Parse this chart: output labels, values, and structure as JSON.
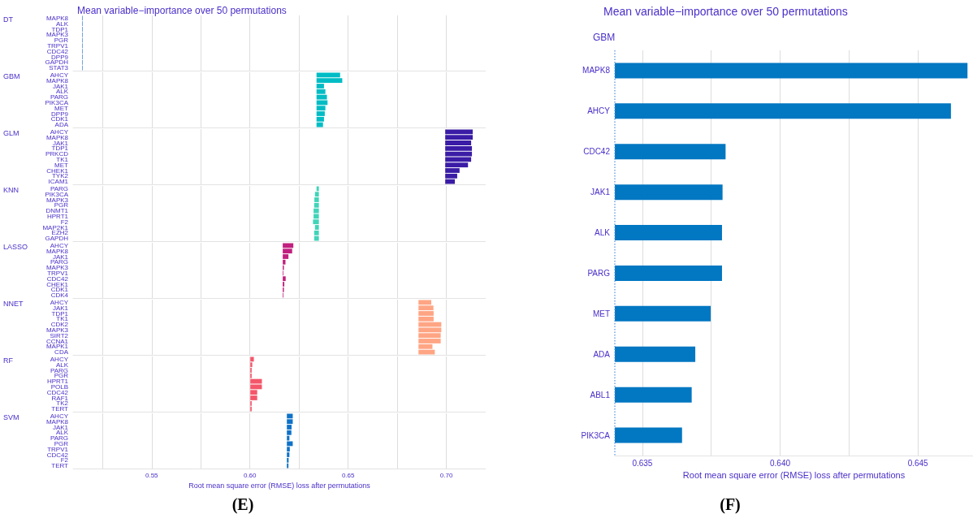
{
  "chart_data": [
    {
      "type": "bar",
      "orientation": "horizontal",
      "title": "Mean variable−importance over 50 permutations",
      "subtitle": "DT",
      "categories": [
        "MAPK8",
        "ALK",
        "TDP1",
        "MAPK3",
        "PGR",
        "TRPV1",
        "CDC42",
        "DPP9",
        "GAPDH",
        "STAT3"
      ],
      "base": [
        0.5146,
        0.5146,
        0.5146,
        0.5146,
        0.5146,
        0.5146,
        0.5146,
        0.5146,
        0.5146,
        0.5146
      ],
      "values": [
        0.0002,
        0.0002,
        0.0002,
        0.0002,
        0.0002,
        0.0002,
        0.0002,
        0.0002,
        0.0002,
        0.0002
      ],
      "color": "#4f8fd9",
      "xlim": [
        0.51,
        0.72
      ],
      "xticks": [
        {
          "value": 0.525,
          "label": null
        },
        {
          "value": 0.55,
          "label": null
        },
        {
          "value": 0.575,
          "label": null
        },
        {
          "value": 0.6,
          "label": null
        },
        {
          "value": 0.625,
          "label": null
        },
        {
          "value": 0.65,
          "label": null
        },
        {
          "value": 0.675,
          "label": null
        },
        {
          "value": 0.7,
          "label": null
        }
      ],
      "grid": "x",
      "tick_labels": "y"
    },
    {
      "type": "bar",
      "orientation": "horizontal",
      "subtitle": "GBM",
      "categories": [
        "AHCY",
        "MAPK8",
        "JAK1",
        "ALK",
        "PARG",
        "PIK3CA",
        "MET",
        "DPP9",
        "CDK1",
        "ADA"
      ],
      "base": [
        0.6339,
        0.6339,
        0.6339,
        0.6339,
        0.6339,
        0.6339,
        0.6339,
        0.6339,
        0.6339,
        0.6339
      ],
      "values": [
        0.012,
        0.0131,
        0.0038,
        0.0045,
        0.0053,
        0.0056,
        0.0045,
        0.0042,
        0.0038,
        0.0033
      ],
      "color": "#00bcc4",
      "xlim": [
        0.51,
        0.72
      ],
      "xticks": [
        {
          "value": 0.525,
          "label": null
        },
        {
          "value": 0.55,
          "label": null
        },
        {
          "value": 0.575,
          "label": null
        },
        {
          "value": 0.6,
          "label": null
        },
        {
          "value": 0.625,
          "label": null
        },
        {
          "value": 0.65,
          "label": null
        },
        {
          "value": 0.675,
          "label": null
        },
        {
          "value": 0.7,
          "label": null
        }
      ],
      "grid": "x",
      "tick_labels": "y"
    },
    {
      "type": "bar",
      "orientation": "horizontal",
      "subtitle": "GLM",
      "categories": [
        "AHCY",
        "MAPK8",
        "JAK1",
        "TDP1",
        "PRKCD",
        "TK1",
        "MET",
        "CHEK1",
        "TYK2",
        "ICAM1"
      ],
      "base": [
        0.6994,
        0.6994,
        0.6994,
        0.6994,
        0.6994,
        0.6994,
        0.6994,
        0.6994,
        0.6994,
        0.6994
      ],
      "values": [
        0.014,
        0.014,
        0.0132,
        0.0136,
        0.0136,
        0.0132,
        0.0116,
        0.0073,
        0.0061,
        0.0049
      ],
      "color": "#3a1ca6",
      "xlim": [
        0.51,
        0.72
      ],
      "xticks": [
        {
          "value": 0.525,
          "label": null
        },
        {
          "value": 0.55,
          "label": null
        },
        {
          "value": 0.575,
          "label": null
        },
        {
          "value": 0.6,
          "label": null
        },
        {
          "value": 0.625,
          "label": null
        },
        {
          "value": 0.65,
          "label": null
        },
        {
          "value": 0.675,
          "label": null
        },
        {
          "value": 0.7,
          "label": null
        }
      ],
      "grid": "x",
      "tick_labels": "y"
    },
    {
      "type": "bar",
      "orientation": "horizontal",
      "subtitle": "KNN",
      "categories": [
        "PARG",
        "PIK3CA",
        "MAPK3",
        "PGR",
        "DNMT1",
        "HPRT1",
        "F2",
        "MAP2K1",
        "EZH2",
        "GAPDH"
      ],
      "base": [
        0.6351,
        0.6351,
        0.6351,
        0.6351,
        0.6351,
        0.6351,
        0.6351,
        0.6351,
        0.6351,
        0.6351
      ],
      "values": [
        -0.0012,
        -0.002,
        -0.0023,
        -0.0024,
        -0.0027,
        -0.0027,
        -0.003,
        -0.002,
        -0.0024,
        -0.0024
      ],
      "color": "#40d4b8",
      "xlim": [
        0.51,
        0.72
      ],
      "xticks": [
        {
          "value": 0.525,
          "label": null
        },
        {
          "value": 0.55,
          "label": null
        },
        {
          "value": 0.575,
          "label": null
        },
        {
          "value": 0.6,
          "label": null
        },
        {
          "value": 0.625,
          "label": null
        },
        {
          "value": 0.65,
          "label": null
        },
        {
          "value": 0.675,
          "label": null
        },
        {
          "value": 0.7,
          "label": null
        }
      ],
      "grid": "x",
      "tick_labels": "y"
    },
    {
      "type": "bar",
      "orientation": "horizontal",
      "subtitle": "LASSO",
      "categories": [
        "AHCY",
        "MAPK8",
        "JAK1",
        "PARG",
        "MAPK3",
        "TRPV1",
        "CDC42",
        "CHEK1",
        "CDK1",
        "CDK4"
      ],
      "base": [
        0.6167,
        0.6167,
        0.6167,
        0.6167,
        0.6167,
        0.6167,
        0.6167,
        0.6167,
        0.6167,
        0.6167
      ],
      "values": [
        0.0054,
        0.0048,
        0.0029,
        0.0014,
        0.0006,
        0.0003,
        0.0015,
        0.0008,
        0.0006,
        0.0001
      ],
      "color": "#c0207f",
      "xlim": [
        0.51,
        0.72
      ],
      "xticks": [
        {
          "value": 0.525,
          "label": null
        },
        {
          "value": 0.55,
          "label": null
        },
        {
          "value": 0.575,
          "label": null
        },
        {
          "value": 0.6,
          "label": null
        },
        {
          "value": 0.625,
          "label": null
        },
        {
          "value": 0.65,
          "label": null
        },
        {
          "value": 0.675,
          "label": null
        },
        {
          "value": 0.7,
          "label": null
        }
      ],
      "grid": "x",
      "tick_labels": "y"
    },
    {
      "type": "bar",
      "orientation": "horizontal",
      "subtitle": "NNET",
      "categories": [
        "AHCY",
        "JAK1",
        "TDP1",
        "TK1",
        "CDK2",
        "MAPK3",
        "SIRT2",
        "CCNA1",
        "MAPK1",
        "CDA"
      ],
      "base": [
        0.6858,
        0.6858,
        0.6858,
        0.6858,
        0.6858,
        0.6858,
        0.6858,
        0.6858,
        0.6858,
        0.6858
      ],
      "values": [
        0.0065,
        0.0076,
        0.0077,
        0.0077,
        0.0116,
        0.0116,
        0.0113,
        0.0113,
        0.0071,
        0.0083
      ],
      "color": "#ffa584",
      "xlim": [
        0.51,
        0.72
      ],
      "xticks": [
        {
          "value": 0.525,
          "label": null
        },
        {
          "value": 0.55,
          "label": null
        },
        {
          "value": 0.575,
          "label": null
        },
        {
          "value": 0.6,
          "label": null
        },
        {
          "value": 0.625,
          "label": null
        },
        {
          "value": 0.65,
          "label": null
        },
        {
          "value": 0.675,
          "label": null
        },
        {
          "value": 0.7,
          "label": null
        }
      ],
      "grid": "x",
      "tick_labels": "y"
    },
    {
      "type": "bar",
      "orientation": "horizontal",
      "subtitle": "RF",
      "categories": [
        "AHCY",
        "ALK",
        "PARG",
        "PGR",
        "HPRT1",
        "POLB",
        "CDC42",
        "RAF1",
        "TK2",
        "TERT"
      ],
      "base": [
        0.6002,
        0.6002,
        0.6002,
        0.6002,
        0.6002,
        0.6002,
        0.6002,
        0.6002,
        0.6002,
        0.6002
      ],
      "values": [
        0.0018,
        0.001,
        0.0007,
        0.0007,
        0.0059,
        0.0059,
        0.0035,
        0.0035,
        0.0007,
        0.0007
      ],
      "color": "#f4566a",
      "xlim": [
        0.51,
        0.72
      ],
      "xticks": [
        {
          "value": 0.525,
          "label": null
        },
        {
          "value": 0.55,
          "label": null
        },
        {
          "value": 0.575,
          "label": null
        },
        {
          "value": 0.6,
          "label": null
        },
        {
          "value": 0.625,
          "label": null
        },
        {
          "value": 0.65,
          "label": null
        },
        {
          "value": 0.675,
          "label": null
        },
        {
          "value": 0.7,
          "label": null
        }
      ],
      "grid": "x",
      "tick_labels": "y"
    },
    {
      "type": "bar",
      "orientation": "horizontal",
      "subtitle": "SVM",
      "xlabel": "Root mean square error (RMSE) loss after permutations",
      "annotations": [
        "(E)"
      ],
      "categories": [
        "AHCY",
        "MAPK8",
        "JAK1",
        "ALK",
        "PARG",
        "PGR",
        "TRPV1",
        "CDC42",
        "F2",
        "TERT"
      ],
      "base": [
        0.6188,
        0.6188,
        0.6188,
        0.6188,
        0.6188,
        0.6188,
        0.6188,
        0.6188,
        0.6188,
        0.6188
      ],
      "values": [
        0.003,
        0.003,
        0.0024,
        0.0023,
        0.0013,
        0.003,
        0.0015,
        0.0013,
        0.0009,
        0.0008
      ],
      "color": "#0f72c8",
      "xlim": [
        0.51,
        0.72
      ],
      "xticks": [
        {
          "value": 0.525,
          "label": null
        },
        {
          "value": 0.55,
          "label": "0.55"
        },
        {
          "value": 0.575,
          "label": null
        },
        {
          "value": 0.6,
          "label": "0.60"
        },
        {
          "value": 0.625,
          "label": null
        },
        {
          "value": 0.65,
          "label": "0.65"
        },
        {
          "value": 0.675,
          "label": null
        },
        {
          "value": 0.7,
          "label": "0.70"
        }
      ],
      "grid": "x"
    },
    {
      "type": "bar",
      "orientation": "horizontal",
      "title": "Mean variable−importance over 50 permutations",
      "subtitle": "GBM",
      "xlabel": "Root mean square error (RMSE) loss after permutations",
      "annotations": [
        "(F)"
      ],
      "categories": [
        "MAPK8",
        "AHCY",
        "CDC42",
        "JAK1",
        "ALK",
        "PARG",
        "MET",
        "ADA",
        "ABL1",
        "PIK3CA"
      ],
      "base": [
        0.634,
        0.634,
        0.634,
        0.634,
        0.634,
        0.634,
        0.634,
        0.634,
        0.634,
        0.634
      ],
      "values": [
        0.0128,
        0.0122,
        0.00402,
        0.00391,
        0.00389,
        0.00389,
        0.00348,
        0.00292,
        0.00279,
        0.00244
      ],
      "color": "#0277c2",
      "xlim": [
        0.634,
        0.647
      ],
      "xticks": [
        {
          "value": 0.635,
          "label": "0.635"
        },
        {
          "value": 0.6375,
          "label": null
        },
        {
          "value": 0.64,
          "label": "0.640"
        },
        {
          "value": 0.6425,
          "label": null
        },
        {
          "value": 0.645,
          "label": "0.645"
        }
      ],
      "grid": "x",
      "ref_lines": [
        {
          "axis": "x",
          "value": 0.634,
          "label": null,
          "color": "#4f8fd9",
          "line_style": "dotted"
        }
      ]
    }
  ]
}
